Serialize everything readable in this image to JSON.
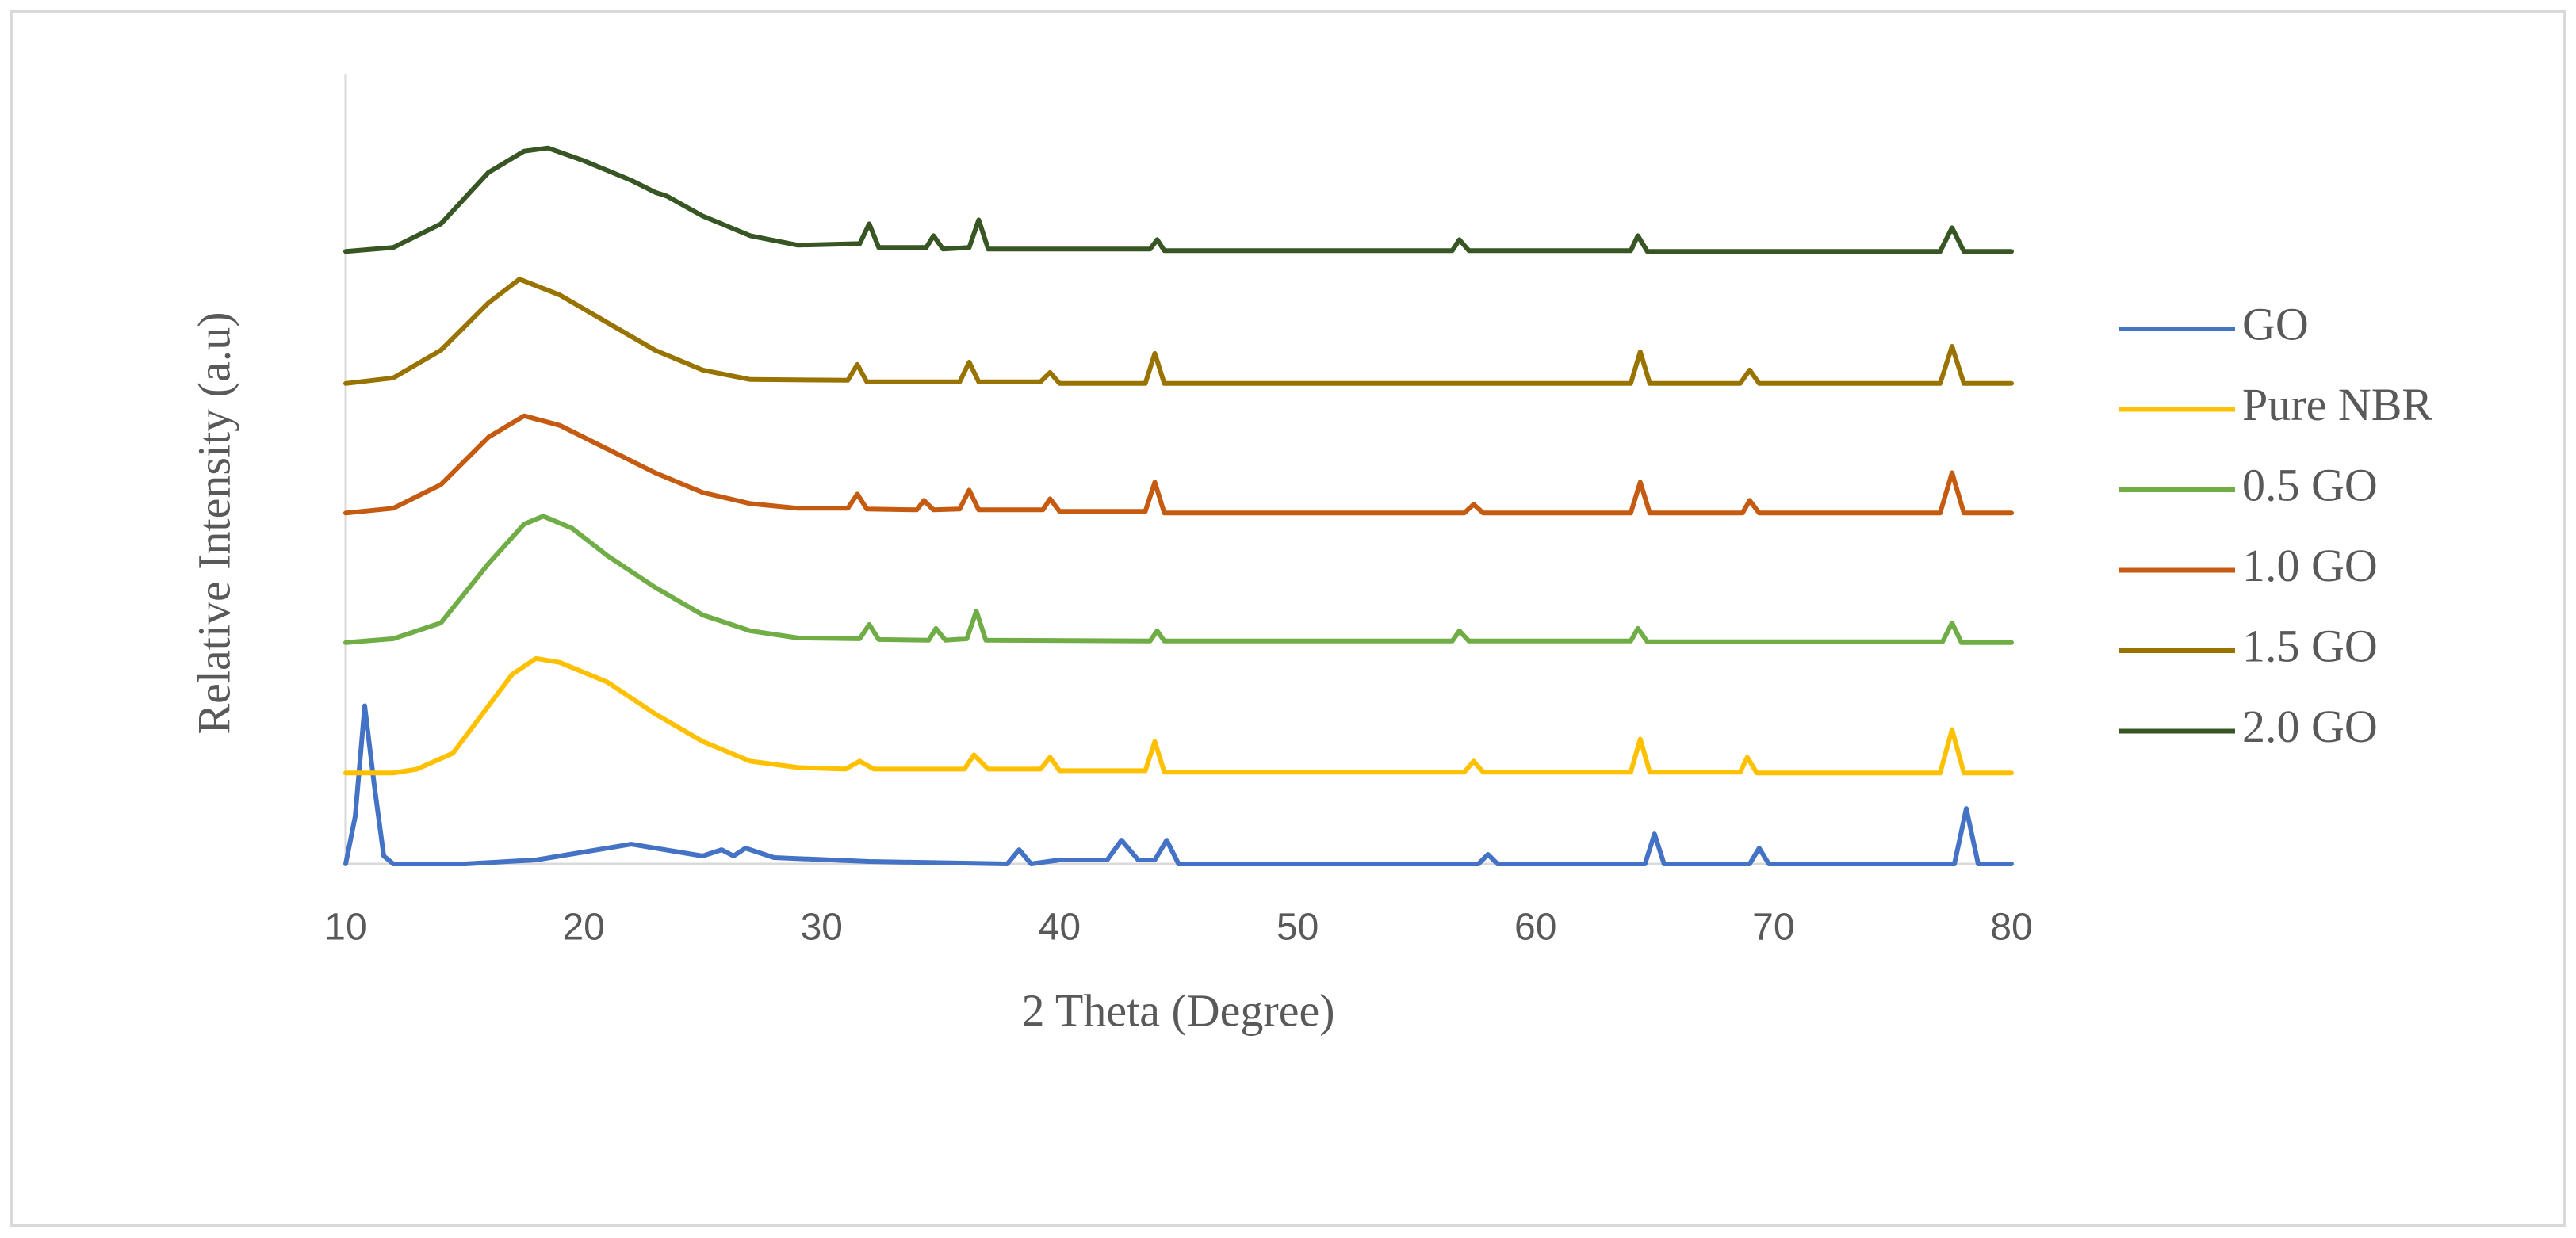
{
  "chart_data": {
    "type": "line",
    "xlabel": "2 Theta (Degree)",
    "ylabel": "Relative  Intensity (a.u)",
    "xlim": [
      10,
      80
    ],
    "xticks": [
      10,
      20,
      30,
      40,
      50,
      60,
      70,
      80
    ],
    "ylim": [
      0,
      100
    ],
    "legend": "right",
    "series": [
      {
        "name": "GO",
        "color": "#4472c4",
        "x": [
          10,
          10.4,
          10.8,
          11.2,
          11.6,
          12,
          15,
          18,
          22,
          25,
          25.8,
          26.3,
          26.8,
          28,
          32,
          37.8,
          38.3,
          38.8,
          40,
          42,
          42.6,
          43.3,
          44,
          44.5,
          45,
          57.6,
          58,
          58.4,
          64.6,
          65,
          65.4,
          69,
          69.4,
          69.8,
          77.6,
          78.1,
          78.6,
          80
        ],
        "values": [
          0,
          6,
          20,
          10,
          1,
          0,
          0,
          0.5,
          2.5,
          1,
          1.8,
          1,
          2,
          0.8,
          0.3,
          0,
          1.8,
          0,
          0.5,
          0.5,
          3,
          0.5,
          0.5,
          3,
          0,
          0,
          1.2,
          0,
          0,
          3.8,
          0,
          0,
          2,
          0,
          0,
          7,
          0,
          0
        ]
      },
      {
        "name": "Pure NBR",
        "color": "#ffc000",
        "x": [
          10,
          12,
          13,
          14.5,
          16,
          17,
          18,
          19,
          21,
          23,
          25,
          27,
          29,
          31,
          31.6,
          32.2,
          36,
          36.4,
          37,
          39.2,
          39.6,
          40,
          43.6,
          44,
          44.4,
          57,
          57.4,
          57.8,
          64,
          64.4,
          64.8,
          68.6,
          68.9,
          69.3,
          77,
          77.5,
          78,
          80
        ],
        "values": [
          11.5,
          11.5,
          12,
          14,
          20,
          24,
          26,
          25.5,
          23,
          19,
          15.5,
          13,
          12.2,
          12,
          13,
          12,
          12,
          13.8,
          12,
          12,
          13.5,
          11.8,
          11.8,
          15.5,
          11.6,
          11.6,
          13,
          11.6,
          11.6,
          15.8,
          11.6,
          11.6,
          13.5,
          11.5,
          11.5,
          17,
          11.5,
          11.5
        ]
      },
      {
        "name": "0.5 GO",
        "color": "#70ad47",
        "x": [
          10,
          12,
          14,
          16,
          17.5,
          18.3,
          19.5,
          21,
          23,
          25,
          27,
          29,
          31.6,
          32,
          32.4,
          34.5,
          34.8,
          35.2,
          36.1,
          36.5,
          36.9,
          43.8,
          44.1,
          44.4,
          56.5,
          56.8,
          57.2,
          64,
          64.3,
          64.7,
          77.1,
          77.5,
          77.9,
          80
        ],
        "values": [
          28,
          28.5,
          30.5,
          38,
          43,
          44,
          42.5,
          39,
          35,
          31.5,
          29.5,
          28.6,
          28.5,
          30.3,
          28.4,
          28.3,
          29.8,
          28.3,
          28.5,
          32,
          28.3,
          28.2,
          29.5,
          28.2,
          28.2,
          29.5,
          28.2,
          28.2,
          29.8,
          28.1,
          28.1,
          30.5,
          28,
          28
        ]
      },
      {
        "name": "1.0 GO",
        "color": "#c55a11",
        "x": [
          10,
          12,
          14,
          16,
          17.5,
          19,
          21,
          23,
          25,
          27,
          29,
          31.1,
          31.5,
          31.9,
          34,
          34.3,
          34.7,
          35.8,
          36.2,
          36.6,
          39.3,
          39.6,
          40,
          43.6,
          44,
          44.4,
          57,
          57.4,
          57.8,
          64,
          64.4,
          64.8,
          68.7,
          69,
          69.4,
          77,
          77.5,
          78,
          80
        ],
        "values": [
          44.4,
          45,
          48,
          54,
          56.7,
          55.5,
          52.5,
          49.5,
          47,
          45.6,
          45,
          45,
          46.8,
          44.9,
          44.8,
          46,
          44.8,
          44.9,
          47.3,
          44.8,
          44.8,
          46.2,
          44.6,
          44.6,
          48.3,
          44.4,
          44.4,
          45.5,
          44.4,
          44.4,
          48.3,
          44.4,
          44.4,
          46,
          44.4,
          44.4,
          49.5,
          44.4,
          44.4
        ]
      },
      {
        "name": "1.5 GO",
        "color": "#997300",
        "x": [
          10,
          12,
          14,
          16,
          17.3,
          19,
          21,
          23,
          25,
          27,
          31.1,
          31.5,
          31.9,
          35.8,
          36.2,
          36.6,
          39.2,
          39.6,
          40,
          43.6,
          44,
          44.4,
          64,
          64.4,
          64.8,
          68.6,
          69,
          69.4,
          77,
          77.5,
          78,
          80
        ],
        "values": [
          60.8,
          61.5,
          65,
          71,
          74,
          72,
          68.5,
          65,
          62.5,
          61.3,
          61.2,
          63.2,
          61,
          61,
          63.5,
          61,
          61,
          62.2,
          60.8,
          60.8,
          64.6,
          60.8,
          60.8,
          64.8,
          60.8,
          60.8,
          62.5,
          60.8,
          60.8,
          65.5,
          60.8,
          60.8
        ]
      },
      {
        "name": "2.0 GO",
        "color": "#375623",
        "x": [
          10,
          12,
          14,
          16,
          17.5,
          18.5,
          20,
          22,
          23,
          23.5,
          25,
          27,
          29,
          31.6,
          32,
          32.4,
          34.4,
          34.7,
          35.1,
          36.2,
          36.6,
          37,
          43.8,
          44.1,
          44.4,
          56.5,
          56.8,
          57.2,
          64,
          64.3,
          64.7,
          77,
          77.5,
          78,
          80
        ],
        "values": [
          77.5,
          78,
          81,
          87.5,
          90.2,
          90.6,
          89,
          86.5,
          85,
          84.5,
          82,
          79.5,
          78.3,
          78.5,
          81,
          78,
          78,
          79.5,
          77.8,
          78,
          81.5,
          77.8,
          77.8,
          79,
          77.6,
          77.6,
          79,
          77.6,
          77.6,
          79.5,
          77.5,
          77.5,
          80.5,
          77.5,
          77.5
        ]
      }
    ]
  }
}
